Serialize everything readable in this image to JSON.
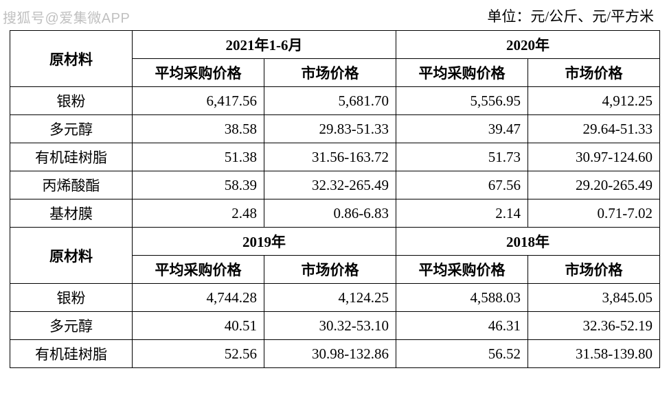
{
  "watermark": "搜狐号@爱集微APP",
  "unit_text": "单位：元/公斤、元/平方米",
  "labels": {
    "material": "原材料",
    "avg_price": "平均采购价格",
    "market_price": "市场价格"
  },
  "section1": {
    "yearA": "2021年1-6月",
    "yearB": "2020年",
    "rows": [
      {
        "name": "银粉",
        "a_avg": "6,417.56",
        "a_market": "5,681.70",
        "b_avg": "5,556.95",
        "b_market": "4,912.25"
      },
      {
        "name": "多元醇",
        "a_avg": "38.58",
        "a_market": "29.83-51.33",
        "b_avg": "39.47",
        "b_market": "29.64-51.33"
      },
      {
        "name": "有机硅树脂",
        "a_avg": "51.38",
        "a_market": "31.56-163.72",
        "b_avg": "51.73",
        "b_market": "30.97-124.60"
      },
      {
        "name": "丙烯酸酯",
        "a_avg": "58.39",
        "a_market": "32.32-265.49",
        "b_avg": "67.56",
        "b_market": "29.20-265.49"
      },
      {
        "name": "基材膜",
        "a_avg": "2.48",
        "a_market": "0.86-6.83",
        "b_avg": "2.14",
        "b_market": "0.71-7.02"
      }
    ]
  },
  "section2": {
    "yearA": "2019年",
    "yearB": "2018年",
    "rows": [
      {
        "name": "银粉",
        "a_avg": "4,744.28",
        "a_market": "4,124.25",
        "b_avg": "4,588.03",
        "b_market": "3,845.05"
      },
      {
        "name": "多元醇",
        "a_avg": "40.51",
        "a_market": "30.32-53.10",
        "b_avg": "46.31",
        "b_market": "32.36-52.19"
      },
      {
        "name": "有机硅树脂",
        "a_avg": "52.56",
        "a_market": "30.98-132.86",
        "b_avg": "56.52",
        "b_market": "31.58-139.80"
      }
    ]
  }
}
